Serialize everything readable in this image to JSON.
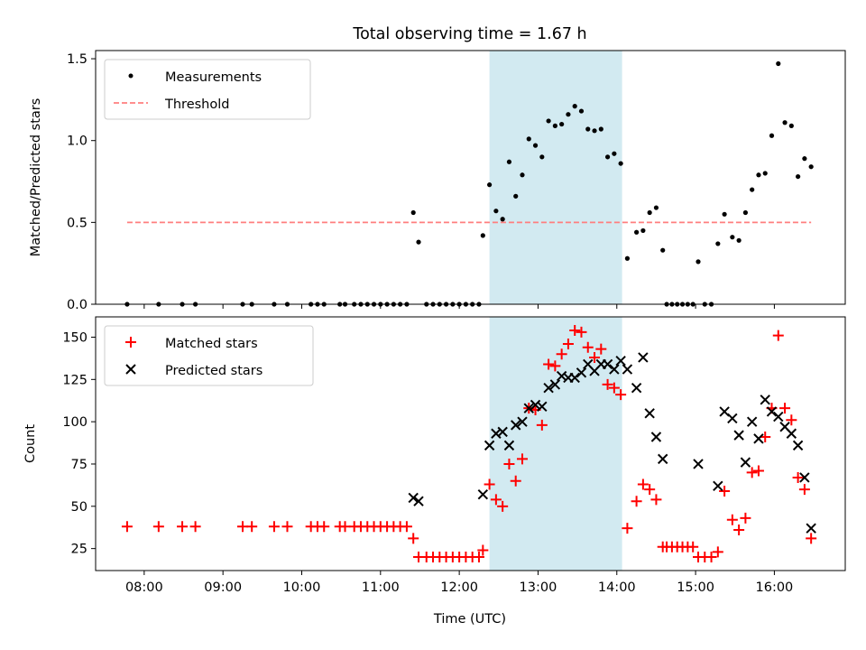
{
  "title": "Total observing time = 1.67 h",
  "shaded_interval": {
    "start": "12:23",
    "end": "14:04",
    "color": "#add8e6"
  },
  "chart_data": [
    {
      "type": "scatter",
      "panel": "top",
      "ylabel": "Matched/Predicted stars",
      "ylim": [
        0,
        1.55
      ],
      "yticks": [
        0.0,
        0.5,
        1.0,
        1.5
      ],
      "ytick_labels": [
        "0.0",
        "0.5",
        "1.0",
        "1.5"
      ],
      "legend": {
        "placement": "upper-left",
        "entries": [
          "Measurements",
          "Threshold"
        ]
      },
      "series": [
        {
          "name": "Measurements",
          "marker": "dot",
          "color": "#000000",
          "points": [
            [
              "07:47",
              0
            ],
            [
              "08:11",
              0
            ],
            [
              "08:29",
              0
            ],
            [
              "08:39",
              0
            ],
            [
              "09:15",
              0
            ],
            [
              "09:22",
              0
            ],
            [
              "09:39",
              0
            ],
            [
              "09:49",
              0
            ],
            [
              "10:07",
              0
            ],
            [
              "10:12",
              0
            ],
            [
              "10:17",
              0
            ],
            [
              "10:29",
              0
            ],
            [
              "10:33",
              0
            ],
            [
              "10:40",
              0
            ],
            [
              "10:45",
              0
            ],
            [
              "10:50",
              0
            ],
            [
              "10:55",
              0
            ],
            [
              "11:00",
              0
            ],
            [
              "11:05",
              0
            ],
            [
              "11:10",
              0
            ],
            [
              "11:15",
              0
            ],
            [
              "11:20",
              0
            ],
            [
              "11:25",
              0.56
            ],
            [
              "11:29",
              0.38
            ],
            [
              "11:35",
              0
            ],
            [
              "11:40",
              0
            ],
            [
              "11:45",
              0
            ],
            [
              "11:50",
              0
            ],
            [
              "11:55",
              0
            ],
            [
              "12:00",
              0
            ],
            [
              "12:05",
              0
            ],
            [
              "12:10",
              0
            ],
            [
              "12:15",
              0
            ],
            [
              "12:18",
              0.42
            ],
            [
              "12:23",
              0.73
            ],
            [
              "12:28",
              0.57
            ],
            [
              "12:33",
              0.52
            ],
            [
              "12:38",
              0.87
            ],
            [
              "12:43",
              0.66
            ],
            [
              "12:48",
              0.79
            ],
            [
              "12:53",
              1.01
            ],
            [
              "12:58",
              0.97
            ],
            [
              "13:03",
              0.9
            ],
            [
              "13:08",
              1.12
            ],
            [
              "13:13",
              1.09
            ],
            [
              "13:18",
              1.1
            ],
            [
              "13:23",
              1.16
            ],
            [
              "13:28",
              1.21
            ],
            [
              "13:33",
              1.18
            ],
            [
              "13:38",
              1.07
            ],
            [
              "13:43",
              1.06
            ],
            [
              "13:48",
              1.07
            ],
            [
              "13:53",
              0.9
            ],
            [
              "13:58",
              0.92
            ],
            [
              "14:03",
              0.86
            ],
            [
              "14:08",
              0.28
            ],
            [
              "14:15",
              0.44
            ],
            [
              "14:20",
              0.45
            ],
            [
              "14:25",
              0.56
            ],
            [
              "14:30",
              0.59
            ],
            [
              "14:35",
              0.33
            ],
            [
              "14:38",
              0
            ],
            [
              "14:42",
              0
            ],
            [
              "14:46",
              0
            ],
            [
              "14:50",
              0
            ],
            [
              "14:54",
              0
            ],
            [
              "14:58",
              0
            ],
            [
              "15:02",
              0.26
            ],
            [
              "15:07",
              0
            ],
            [
              "15:12",
              0
            ],
            [
              "15:17",
              0.37
            ],
            [
              "15:22",
              0.55
            ],
            [
              "15:28",
              0.41
            ],
            [
              "15:33",
              0.39
            ],
            [
              "15:38",
              0.56
            ],
            [
              "15:43",
              0.7
            ],
            [
              "15:48",
              0.79
            ],
            [
              "15:53",
              0.8
            ],
            [
              "15:58",
              1.03
            ],
            [
              "16:03",
              1.47
            ],
            [
              "16:08",
              1.11
            ],
            [
              "16:13",
              1.09
            ],
            [
              "16:18",
              0.78
            ],
            [
              "16:23",
              0.89
            ],
            [
              "16:28",
              0.84
            ]
          ]
        },
        {
          "name": "Threshold",
          "style": "dashed",
          "color": "#ff7f7f",
          "points": [
            [
              "07:47",
              0.5
            ],
            [
              "16:28",
              0.5
            ]
          ]
        }
      ]
    },
    {
      "type": "scatter",
      "panel": "bottom",
      "xlabel": "Time (UTC)",
      "ylabel": "Count",
      "ylim": [
        12,
        162
      ],
      "yticks": [
        25,
        50,
        75,
        100,
        125,
        150
      ],
      "ytick_labels": [
        "25",
        "50",
        "75",
        "100",
        "125",
        "150"
      ],
      "xlim": [
        "07:23",
        "16:54"
      ],
      "xticks": [
        "08:00",
        "09:00",
        "10:00",
        "11:00",
        "12:00",
        "13:00",
        "14:00",
        "15:00",
        "16:00"
      ],
      "legend": {
        "placement": "upper-left",
        "entries": [
          "Matched stars",
          "Predicted stars"
        ]
      },
      "series": [
        {
          "name": "Matched stars",
          "marker": "plus",
          "color": "#ff0000",
          "points": [
            [
              "07:47",
              38
            ],
            [
              "08:11",
              38
            ],
            [
              "08:29",
              38
            ],
            [
              "08:39",
              38
            ],
            [
              "09:15",
              38
            ],
            [
              "09:22",
              38
            ],
            [
              "09:39",
              38
            ],
            [
              "09:49",
              38
            ],
            [
              "10:07",
              38
            ],
            [
              "10:12",
              38
            ],
            [
              "10:17",
              38
            ],
            [
              "10:29",
              38
            ],
            [
              "10:33",
              38
            ],
            [
              "10:40",
              38
            ],
            [
              "10:45",
              38
            ],
            [
              "10:50",
              38
            ],
            [
              "10:55",
              38
            ],
            [
              "11:00",
              38
            ],
            [
              "11:05",
              38
            ],
            [
              "11:10",
              38
            ],
            [
              "11:15",
              38
            ],
            [
              "11:20",
              38
            ],
            [
              "11:25",
              31
            ],
            [
              "11:29",
              20
            ],
            [
              "11:35",
              20
            ],
            [
              "11:40",
              20
            ],
            [
              "11:45",
              20
            ],
            [
              "11:50",
              20
            ],
            [
              "11:55",
              20
            ],
            [
              "12:00",
              20
            ],
            [
              "12:05",
              20
            ],
            [
              "12:10",
              20
            ],
            [
              "12:15",
              20
            ],
            [
              "12:18",
              24
            ],
            [
              "12:23",
              63
            ],
            [
              "12:28",
              54
            ],
            [
              "12:33",
              50
            ],
            [
              "12:38",
              75
            ],
            [
              "12:43",
              65
            ],
            [
              "12:48",
              78
            ],
            [
              "12:53",
              108
            ],
            [
              "12:58",
              107
            ],
            [
              "13:03",
              98
            ],
            [
              "13:08",
              134
            ],
            [
              "13:13",
              133
            ],
            [
              "13:18",
              140
            ],
            [
              "13:23",
              146
            ],
            [
              "13:28",
              154
            ],
            [
              "13:33",
              153
            ],
            [
              "13:38",
              144
            ],
            [
              "13:43",
              138
            ],
            [
              "13:48",
              143
            ],
            [
              "13:53",
              122
            ],
            [
              "13:58",
              120
            ],
            [
              "14:03",
              116
            ],
            [
              "14:08",
              37
            ],
            [
              "14:15",
              53
            ],
            [
              "14:20",
              63
            ],
            [
              "14:25",
              60
            ],
            [
              "14:30",
              54
            ],
            [
              "14:35",
              26
            ],
            [
              "14:38",
              26
            ],
            [
              "14:42",
              26
            ],
            [
              "14:46",
              26
            ],
            [
              "14:50",
              26
            ],
            [
              "14:54",
              26
            ],
            [
              "14:58",
              26
            ],
            [
              "15:02",
              20
            ],
            [
              "15:07",
              20
            ],
            [
              "15:12",
              20
            ],
            [
              "15:17",
              23
            ],
            [
              "15:22",
              59
            ],
            [
              "15:28",
              42
            ],
            [
              "15:33",
              36
            ],
            [
              "15:38",
              43
            ],
            [
              "15:43",
              70
            ],
            [
              "15:48",
              71
            ],
            [
              "15:53",
              91
            ],
            [
              "15:58",
              108
            ],
            [
              "16:03",
              151
            ],
            [
              "16:08",
              108
            ],
            [
              "16:13",
              101
            ],
            [
              "16:18",
              67
            ],
            [
              "16:23",
              60
            ],
            [
              "16:28",
              31
            ]
          ]
        },
        {
          "name": "Predicted stars",
          "marker": "x",
          "color": "#000000",
          "points": [
            [
              "11:25",
              55
            ],
            [
              "11:29",
              53
            ],
            [
              "12:18",
              57
            ],
            [
              "12:23",
              86
            ],
            [
              "12:28",
              93
            ],
            [
              "12:33",
              94
            ],
            [
              "12:38",
              86
            ],
            [
              "12:43",
              98
            ],
            [
              "12:48",
              100
            ],
            [
              "12:53",
              108
            ],
            [
              "12:58",
              110
            ],
            [
              "13:03",
              109
            ],
            [
              "13:08",
              120
            ],
            [
              "13:13",
              122
            ],
            [
              "13:18",
              127
            ],
            [
              "13:23",
              126
            ],
            [
              "13:28",
              126
            ],
            [
              "13:33",
              129
            ],
            [
              "13:38",
              134
            ],
            [
              "13:43",
              130
            ],
            [
              "13:48",
              134
            ],
            [
              "13:53",
              134
            ],
            [
              "13:58",
              131
            ],
            [
              "14:03",
              136
            ],
            [
              "14:08",
              131
            ],
            [
              "14:15",
              120
            ],
            [
              "14:20",
              138
            ],
            [
              "14:25",
              105
            ],
            [
              "14:30",
              91
            ],
            [
              "14:35",
              78
            ],
            [
              "15:02",
              75
            ],
            [
              "15:17",
              62
            ],
            [
              "15:22",
              106
            ],
            [
              "15:28",
              102
            ],
            [
              "15:33",
              92
            ],
            [
              "15:38",
              76
            ],
            [
              "15:43",
              100
            ],
            [
              "15:48",
              90
            ],
            [
              "15:53",
              113
            ],
            [
              "15:58",
              106
            ],
            [
              "16:03",
              103
            ],
            [
              "16:08",
              97
            ],
            [
              "16:13",
              93
            ],
            [
              "16:18",
              86
            ],
            [
              "16:23",
              67
            ],
            [
              "16:28",
              37
            ]
          ]
        }
      ]
    }
  ]
}
